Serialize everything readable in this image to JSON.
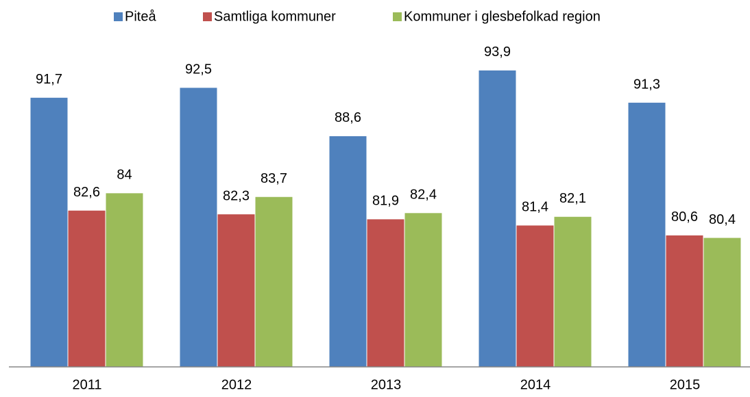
{
  "chart_data": {
    "type": "bar",
    "categories": [
      "2011",
      "2012",
      "2013",
      "2014",
      "2015"
    ],
    "series": [
      {
        "name": "Piteå",
        "color": "#4f81bd",
        "values": [
          91.7,
          92.5,
          88.6,
          93.9,
          91.3
        ],
        "value_labels": [
          "91,7",
          "92,5",
          "88,6",
          "93,9",
          "91,3"
        ]
      },
      {
        "name": "Samtliga kommuner",
        "color": "#c0504d",
        "values": [
          82.6,
          82.3,
          81.9,
          81.4,
          80.6
        ],
        "value_labels": [
          "82,6",
          "82,3",
          "81,9",
          "81,4",
          "80,6"
        ]
      },
      {
        "name": "Kommuner i glesbefolkad region",
        "color": "#9bbb59",
        "values": [
          84,
          83.7,
          82.4,
          82.1,
          80.4
        ],
        "value_labels": [
          "84",
          "83,7",
          "82,4",
          "82,1",
          "80,4"
        ]
      }
    ],
    "ylim": [
      70,
      95
    ],
    "legend": "top"
  }
}
